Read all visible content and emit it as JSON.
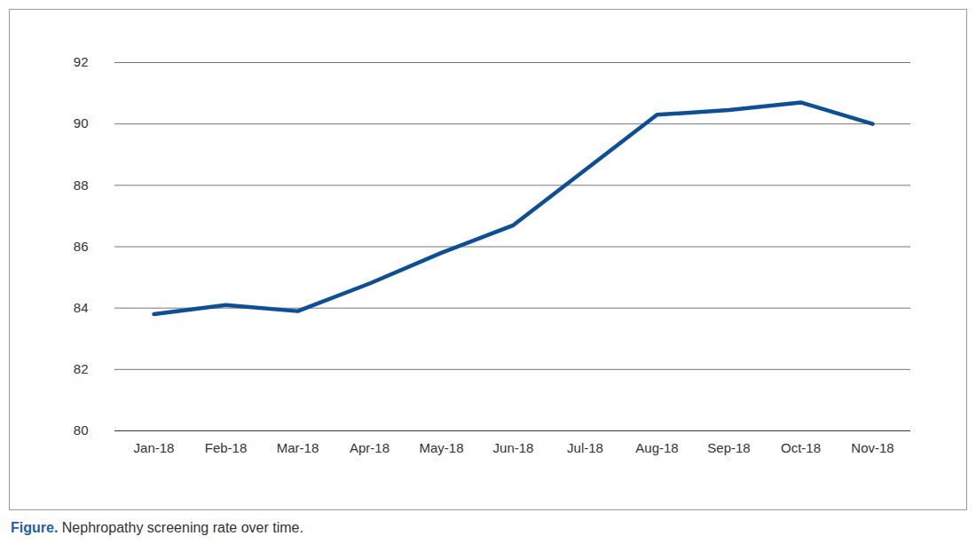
{
  "chart_data": {
    "type": "line",
    "caption_label": "Figure.",
    "caption": "Nephropathy screening rate over time.",
    "categories": [
      "Jan-18",
      "Feb-18",
      "Mar-18",
      "Apr-18",
      "May-18",
      "Jun-18",
      "Jul-18",
      "Aug-18",
      "Sep-18",
      "Oct-18",
      "Nov-18"
    ],
    "values": [
      83.8,
      84.1,
      83.9,
      84.8,
      85.8,
      86.7,
      88.5,
      90.3,
      90.45,
      90.7,
      90.0
    ],
    "color": "#0d4f96",
    "ylim": [
      80,
      92
    ],
    "yticks": [
      80,
      82,
      84,
      86,
      88,
      90,
      92
    ],
    "grid": true
  }
}
